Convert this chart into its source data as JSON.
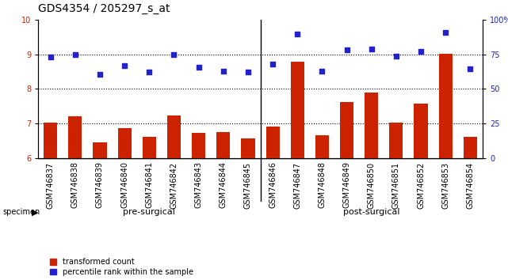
{
  "title": "GDS4354 / 205297_s_at",
  "categories": [
    "GSM746837",
    "GSM746838",
    "GSM746839",
    "GSM746840",
    "GSM746841",
    "GSM746842",
    "GSM746843",
    "GSM746844",
    "GSM746845",
    "GSM746846",
    "GSM746847",
    "GSM746848",
    "GSM746849",
    "GSM746850",
    "GSM746851",
    "GSM746852",
    "GSM746853",
    "GSM746854"
  ],
  "bar_values": [
    7.03,
    7.22,
    6.45,
    6.87,
    6.62,
    7.23,
    6.73,
    6.75,
    6.58,
    6.92,
    8.78,
    6.67,
    7.63,
    7.9,
    7.03,
    7.57,
    9.02,
    6.62
  ],
  "dot_values": [
    8.93,
    8.98,
    8.43,
    8.68,
    8.48,
    8.98,
    8.62,
    8.52,
    8.48,
    8.72,
    9.58,
    8.52,
    9.12,
    9.16,
    8.94,
    9.09,
    9.62,
    8.57
  ],
  "pre_surgical_count": 9,
  "bar_color": "#cc2200",
  "dot_color": "#2222cc",
  "pre_surgical_color": "#ccffcc",
  "post_surgical_color": "#44cc44",
  "xticklabel_bg": "#cccccc",
  "ylim_left": [
    6,
    10
  ],
  "ylim_right": [
    0,
    100
  ],
  "yticks_left": [
    6,
    7,
    8,
    9,
    10
  ],
  "yticks_right": [
    0,
    25,
    50,
    75,
    100
  ],
  "ytick_right_labels": [
    "0",
    "25",
    "50",
    "75",
    "100%"
  ],
  "grid_values": [
    7.0,
    8.0,
    9.0
  ],
  "title_fontsize": 10,
  "tick_fontsize": 7,
  "label_fontsize": 8,
  "bar_width": 0.55,
  "background_color": "#ffffff"
}
